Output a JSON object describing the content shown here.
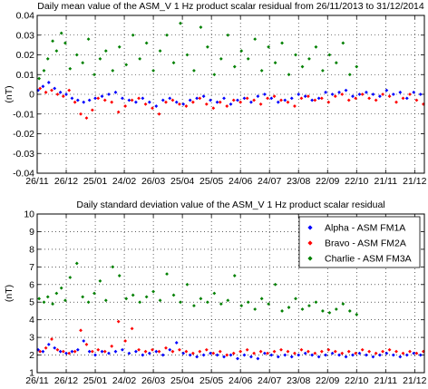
{
  "chart_data": [
    {
      "type": "scatter",
      "title": "Daily mean value of the ASM_V 1 Hz product scalar residual from 26/11/2013 to 31/12/2014",
      "xlabel": "",
      "ylabel": "(nT)",
      "xlim": [
        "2013-11-26",
        "2014-12-31"
      ],
      "ylim": [
        -0.04,
        0.04
      ],
      "yticks": [
        "-0.04",
        "-0.03",
        "-0.02",
        "-0.01",
        "0",
        "0.01",
        "0.02",
        "0.03",
        "0.04"
      ],
      "xticks": [
        "26/11",
        "26/12",
        "25/01",
        "24/02",
        "26/03",
        "25/04",
        "25/05",
        "24/06",
        "24/07",
        "23/08",
        "22/09",
        "22/10",
        "21/11",
        "21/12"
      ],
      "grid": true,
      "legend": "none",
      "series": [
        {
          "name": "Alpha - ASM FM1A",
          "color": "#0000ff",
          "x": [
            "2013-11-27",
            "2013-12-02",
            "2013-12-08",
            "2013-12-14",
            "2013-12-20",
            "2013-12-26",
            "2014-01-01",
            "2014-01-07",
            "2014-01-13",
            "2014-01-19",
            "2014-01-25",
            "2014-02-01",
            "2014-02-08",
            "2014-02-15",
            "2014-02-22",
            "2014-03-01",
            "2014-03-08",
            "2014-03-15",
            "2014-03-22",
            "2014-03-29",
            "2014-04-05",
            "2014-04-12",
            "2014-04-19",
            "2014-04-26",
            "2014-05-03",
            "2014-05-10",
            "2014-05-17",
            "2014-05-24",
            "2014-05-31",
            "2014-06-07",
            "2014-06-14",
            "2014-06-21",
            "2014-06-28",
            "2014-07-05",
            "2014-07-12",
            "2014-07-19",
            "2014-07-26",
            "2014-08-02",
            "2014-08-09",
            "2014-08-16",
            "2014-08-23",
            "2014-08-30",
            "2014-09-06",
            "2014-09-13",
            "2014-09-20",
            "2014-09-27",
            "2014-10-04",
            "2014-10-11",
            "2014-10-18",
            "2014-10-25",
            "2014-11-01",
            "2014-11-08",
            "2014-11-15",
            "2014-11-22",
            "2014-11-29",
            "2014-12-06",
            "2014-12-13",
            "2014-12-20",
            "2014-12-27"
          ],
          "y": [
            0.002,
            0.004,
            0.006,
            0.003,
            0.001,
            0.0,
            -0.002,
            -0.003,
            -0.004,
            -0.003,
            -0.002,
            -0.001,
            0.0,
            0.001,
            -0.002,
            -0.003,
            -0.004,
            -0.002,
            -0.004,
            -0.006,
            -0.003,
            -0.002,
            -0.004,
            -0.005,
            -0.003,
            -0.002,
            -0.001,
            -0.003,
            -0.004,
            -0.002,
            -0.005,
            -0.003,
            -0.002,
            -0.004,
            -0.001,
            0.0,
            -0.002,
            -0.004,
            -0.003,
            -0.002,
            0.0,
            -0.001,
            -0.003,
            -0.002,
            0.001,
            0.0,
            0.001,
            0.002,
            -0.001,
            0.0,
            0.001,
            0.0,
            -0.001,
            0.002,
            0.0,
            0.001,
            -0.002,
            0.001,
            0.0
          ]
        },
        {
          "name": "Bravo - ASM FM2A",
          "color": "#ff0000",
          "x": [
            "2013-11-29",
            "2013-12-05",
            "2013-12-11",
            "2013-12-17",
            "2013-12-23",
            "2013-12-29",
            "2014-01-04",
            "2014-01-10",
            "2014-01-16",
            "2014-01-22",
            "2014-01-28",
            "2014-02-04",
            "2014-02-11",
            "2014-02-18",
            "2014-02-25",
            "2014-03-04",
            "2014-03-11",
            "2014-03-18",
            "2014-03-25",
            "2014-04-01",
            "2014-04-08",
            "2014-04-15",
            "2014-04-22",
            "2014-04-29",
            "2014-05-06",
            "2014-05-13",
            "2014-05-20",
            "2014-05-27",
            "2014-06-03",
            "2014-06-10",
            "2014-06-17",
            "2014-06-24",
            "2014-07-01",
            "2014-07-08",
            "2014-07-15",
            "2014-07-22",
            "2014-07-29",
            "2014-08-05",
            "2014-08-12",
            "2014-08-19",
            "2014-08-26",
            "2014-09-02",
            "2014-09-09",
            "2014-09-16",
            "2014-09-23",
            "2014-09-30",
            "2014-10-07",
            "2014-10-14",
            "2014-10-21",
            "2014-10-28",
            "2014-11-04",
            "2014-11-11",
            "2014-11-18",
            "2014-11-25",
            "2014-12-02",
            "2014-12-09",
            "2014-12-16",
            "2014-12-23",
            "2014-12-30"
          ],
          "y": [
            0.003,
            0.001,
            0.002,
            0.0,
            -0.001,
            0.002,
            -0.004,
            -0.01,
            -0.012,
            -0.008,
            -0.002,
            -0.003,
            -0.004,
            -0.009,
            -0.006,
            -0.003,
            -0.002,
            -0.005,
            -0.007,
            -0.01,
            -0.004,
            -0.003,
            -0.005,
            -0.006,
            -0.004,
            -0.002,
            -0.005,
            -0.007,
            -0.004,
            -0.006,
            -0.003,
            -0.004,
            -0.002,
            -0.003,
            -0.005,
            -0.002,
            -0.001,
            -0.003,
            -0.004,
            -0.006,
            -0.002,
            -0.001,
            -0.003,
            -0.002,
            -0.004,
            -0.001,
            0.0,
            -0.003,
            -0.002,
            0.0,
            -0.002,
            -0.003,
            0.0,
            -0.001,
            -0.004,
            -0.002,
            0.0,
            -0.003,
            -0.005
          ]
        },
        {
          "name": "Charlie - ASM FM3A",
          "color": "#008000",
          "x": [
            "2013-11-28",
            "2013-12-03",
            "2013-12-07",
            "2013-12-12",
            "2013-12-16",
            "2013-12-21",
            "2013-12-25",
            "2013-12-30",
            "2014-01-06",
            "2014-01-12",
            "2014-01-18",
            "2014-01-24",
            "2014-01-30",
            "2014-02-05",
            "2014-02-12",
            "2014-02-19",
            "2014-02-26",
            "2014-03-05",
            "2014-03-12",
            "2014-03-19",
            "2014-03-26",
            "2014-04-02",
            "2014-04-09",
            "2014-04-16",
            "2014-04-23",
            "2014-04-30",
            "2014-05-07",
            "2014-05-14",
            "2014-05-21",
            "2014-05-28",
            "2014-06-04",
            "2014-06-11",
            "2014-06-18",
            "2014-06-25",
            "2014-07-02",
            "2014-07-09",
            "2014-07-16",
            "2014-07-23",
            "2014-07-30",
            "2014-08-06",
            "2014-08-13",
            "2014-08-20",
            "2014-08-27",
            "2014-09-03",
            "2014-09-10",
            "2014-09-17",
            "2014-09-24",
            "2014-10-01",
            "2014-10-08",
            "2014-10-15",
            "2014-10-22"
          ],
          "y": [
            0.008,
            0.012,
            0.018,
            0.027,
            0.022,
            0.031,
            0.026,
            0.013,
            0.02,
            0.016,
            0.028,
            0.01,
            0.018,
            0.022,
            0.012,
            0.024,
            0.015,
            0.03,
            0.018,
            0.026,
            0.012,
            0.022,
            0.03,
            0.016,
            0.036,
            0.02,
            0.012,
            0.034,
            0.024,
            0.01,
            0.018,
            0.03,
            0.014,
            0.022,
            0.018,
            0.028,
            0.012,
            0.024,
            0.016,
            0.026,
            0.01,
            0.02,
            0.014,
            0.018,
            0.024,
            0.012,
            0.02,
            0.016,
            0.026,
            0.01,
            0.014
          ]
        }
      ]
    },
    {
      "type": "scatter",
      "title": "Daily standard deviation value of the ASM_V 1 Hz product scalar residual",
      "xlabel": "",
      "ylabel": "(nT)",
      "xlim": [
        "2013-11-26",
        "2014-12-31"
      ],
      "ylim": [
        1,
        10
      ],
      "yticks": [
        "1",
        "2",
        "3",
        "4",
        "5",
        "6",
        "7",
        "8",
        "9",
        "10"
      ],
      "xticks": [
        "26/11",
        "26/12",
        "25/01",
        "24/02",
        "26/03",
        "25/04",
        "25/05",
        "24/06",
        "24/07",
        "23/08",
        "22/09",
        "22/10",
        "21/11",
        "21/12"
      ],
      "grid": true,
      "legend": "top-right",
      "series": [
        {
          "name": "Alpha - ASM FM1A",
          "color": "#0000ff",
          "x": [
            "2013-11-27",
            "2013-12-02",
            "2013-12-08",
            "2013-12-14",
            "2013-12-20",
            "2013-12-26",
            "2014-01-01",
            "2014-01-07",
            "2014-01-13",
            "2014-01-19",
            "2014-01-25",
            "2014-02-01",
            "2014-02-08",
            "2014-02-15",
            "2014-02-22",
            "2014-03-01",
            "2014-03-08",
            "2014-03-15",
            "2014-03-22",
            "2014-03-29",
            "2014-04-05",
            "2014-04-12",
            "2014-04-19",
            "2014-04-26",
            "2014-05-03",
            "2014-05-10",
            "2014-05-17",
            "2014-05-24",
            "2014-05-31",
            "2014-06-07",
            "2014-06-14",
            "2014-06-21",
            "2014-06-28",
            "2014-07-05",
            "2014-07-12",
            "2014-07-19",
            "2014-07-26",
            "2014-08-02",
            "2014-08-09",
            "2014-08-16",
            "2014-08-23",
            "2014-08-30",
            "2014-09-06",
            "2014-09-13",
            "2014-09-20",
            "2014-09-27",
            "2014-10-04",
            "2014-10-11",
            "2014-10-18",
            "2014-10-25",
            "2014-11-01",
            "2014-11-08",
            "2014-11-15",
            "2014-11-22",
            "2014-11-29",
            "2014-12-06",
            "2014-12-13",
            "2014-12-20",
            "2014-12-27"
          ],
          "y": [
            2.3,
            2.2,
            2.6,
            2.4,
            2.2,
            2.1,
            2.2,
            2.3,
            2.8,
            2.2,
            2.0,
            2.2,
            2.1,
            2.2,
            2.3,
            2.1,
            2.2,
            2.0,
            2.1,
            2.2,
            2.0,
            2.3,
            2.7,
            2.1,
            2.0,
            1.9,
            2.0,
            2.1,
            2.0,
            1.9,
            2.0,
            1.8,
            2.0,
            1.9,
            1.8,
            2.1,
            2.0,
            1.9,
            2.0,
            1.9,
            2.0,
            2.1,
            2.0,
            1.9,
            2.0,
            2.1,
            2.0,
            1.9,
            2.0,
            2.1,
            2.0,
            1.9,
            2.0,
            2.1,
            2.0,
            1.9,
            2.0,
            2.1,
            2.0
          ]
        },
        {
          "name": "Bravo - ASM FM2A",
          "color": "#ff0000",
          "x": [
            "2013-11-29",
            "2013-12-05",
            "2013-12-11",
            "2013-12-17",
            "2013-12-23",
            "2013-12-29",
            "2014-01-04",
            "2014-01-10",
            "2014-01-16",
            "2014-01-22",
            "2014-01-28",
            "2014-02-04",
            "2014-02-11",
            "2014-02-18",
            "2014-02-25",
            "2014-03-04",
            "2014-03-11",
            "2014-03-18",
            "2014-03-25",
            "2014-04-01",
            "2014-04-08",
            "2014-04-15",
            "2014-04-22",
            "2014-04-29",
            "2014-05-06",
            "2014-05-13",
            "2014-05-20",
            "2014-05-27",
            "2014-06-03",
            "2014-06-10",
            "2014-06-17",
            "2014-06-24",
            "2014-07-01",
            "2014-07-08",
            "2014-07-15",
            "2014-07-22",
            "2014-07-29",
            "2014-08-05",
            "2014-08-12",
            "2014-08-19",
            "2014-08-26",
            "2014-09-02",
            "2014-09-09",
            "2014-09-16",
            "2014-09-23",
            "2014-09-30",
            "2014-10-07",
            "2014-10-14",
            "2014-10-21",
            "2014-10-28",
            "2014-11-04",
            "2014-11-11",
            "2014-11-18",
            "2014-11-25",
            "2014-12-02",
            "2014-12-09",
            "2014-12-16",
            "2014-12-23",
            "2014-12-30"
          ],
          "y": [
            2.2,
            2.4,
            2.9,
            2.3,
            2.2,
            2.1,
            2.2,
            3.4,
            2.6,
            2.2,
            2.3,
            2.2,
            2.5,
            3.9,
            2.8,
            3.5,
            2.3,
            2.2,
            2.3,
            2.2,
            2.4,
            2.2,
            2.3,
            2.2,
            2.1,
            2.2,
            2.3,
            2.1,
            2.2,
            2.0,
            2.1,
            2.2,
            2.3,
            2.1,
            2.2,
            2.1,
            2.2,
            2.3,
            2.2,
            2.1,
            2.3,
            2.2,
            2.1,
            2.2,
            2.3,
            2.2,
            2.1,
            2.2,
            2.1,
            2.3,
            2.2,
            2.1,
            2.2,
            2.3,
            2.2,
            2.1,
            2.2,
            2.1,
            2.2
          ]
        },
        {
          "name": "Charlie - ASM FM3A",
          "color": "#008000",
          "x": [
            "2013-11-28",
            "2013-12-03",
            "2013-12-07",
            "2013-12-12",
            "2013-12-16",
            "2013-12-21",
            "2013-12-25",
            "2013-12-30",
            "2014-01-06",
            "2014-01-12",
            "2014-01-18",
            "2014-01-24",
            "2014-01-30",
            "2014-02-05",
            "2014-02-12",
            "2014-02-19",
            "2014-02-26",
            "2014-03-05",
            "2014-03-12",
            "2014-03-19",
            "2014-03-26",
            "2014-04-02",
            "2014-04-09",
            "2014-04-16",
            "2014-04-23",
            "2014-04-30",
            "2014-05-07",
            "2014-05-14",
            "2014-05-21",
            "2014-05-28",
            "2014-06-04",
            "2014-06-11",
            "2014-06-18",
            "2014-06-25",
            "2014-07-02",
            "2014-07-09",
            "2014-07-16",
            "2014-07-23",
            "2014-07-30",
            "2014-08-06",
            "2014-08-13",
            "2014-08-20",
            "2014-08-27",
            "2014-09-03",
            "2014-09-10",
            "2014-09-17",
            "2014-09-24",
            "2014-10-01",
            "2014-10-08",
            "2014-10-15",
            "2014-10-22"
          ],
          "y": [
            5.2,
            5.0,
            5.3,
            4.9,
            5.5,
            5.8,
            5.1,
            6.4,
            7.2,
            5.3,
            5.0,
            5.5,
            6.2,
            5.1,
            7.0,
            6.5,
            5.2,
            5.4,
            5.0,
            5.3,
            5.6,
            5.1,
            6.6,
            5.4,
            5.0,
            6.0,
            4.8,
            5.2,
            5.0,
            5.5,
            4.9,
            5.1,
            6.5,
            4.8,
            5.0,
            4.6,
            5.2,
            4.9,
            6.0,
            4.5,
            4.7,
            5.2,
            4.6,
            4.8,
            5.0,
            4.5,
            4.4,
            4.6,
            4.9,
            4.5,
            4.3
          ]
        }
      ]
    }
  ]
}
